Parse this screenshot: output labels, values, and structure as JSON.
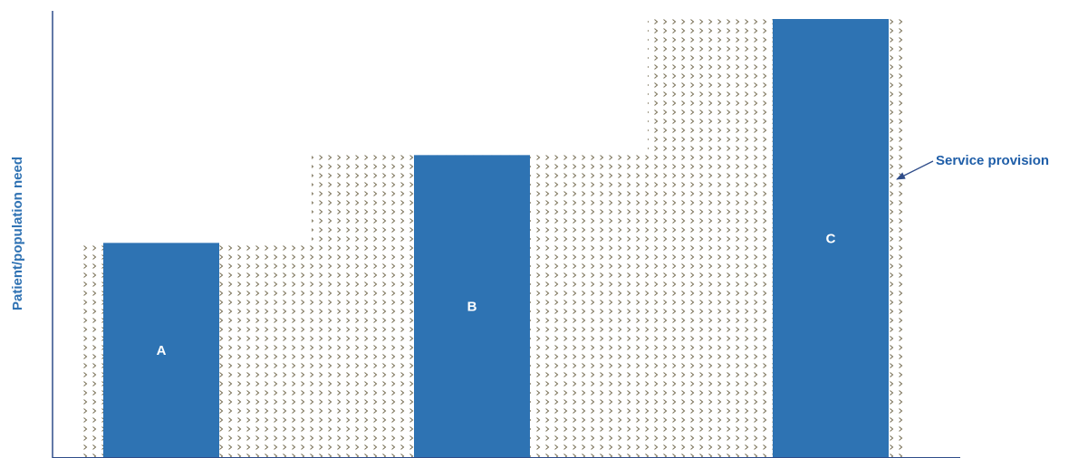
{
  "chart_data": {
    "type": "bar",
    "categories": [
      "A",
      "B",
      "C"
    ],
    "series": [
      {
        "values": [
          0.49,
          0.69,
          1.0
        ]
      }
    ],
    "need_steps": [
      0.49,
      0.69,
      1.0
    ],
    "title": "",
    "xlabel": "",
    "ylabel": "Patient/population need",
    "annotation": "Service provision",
    "ylim": [
      0,
      1.0
    ],
    "grid": false,
    "legend": "none",
    "colors": {
      "bar": "#2e73b3",
      "pattern": "#7a7258",
      "axis": "#2f4d8a",
      "label": "#2f72b3",
      "annotation": "#1f5ea8"
    }
  }
}
